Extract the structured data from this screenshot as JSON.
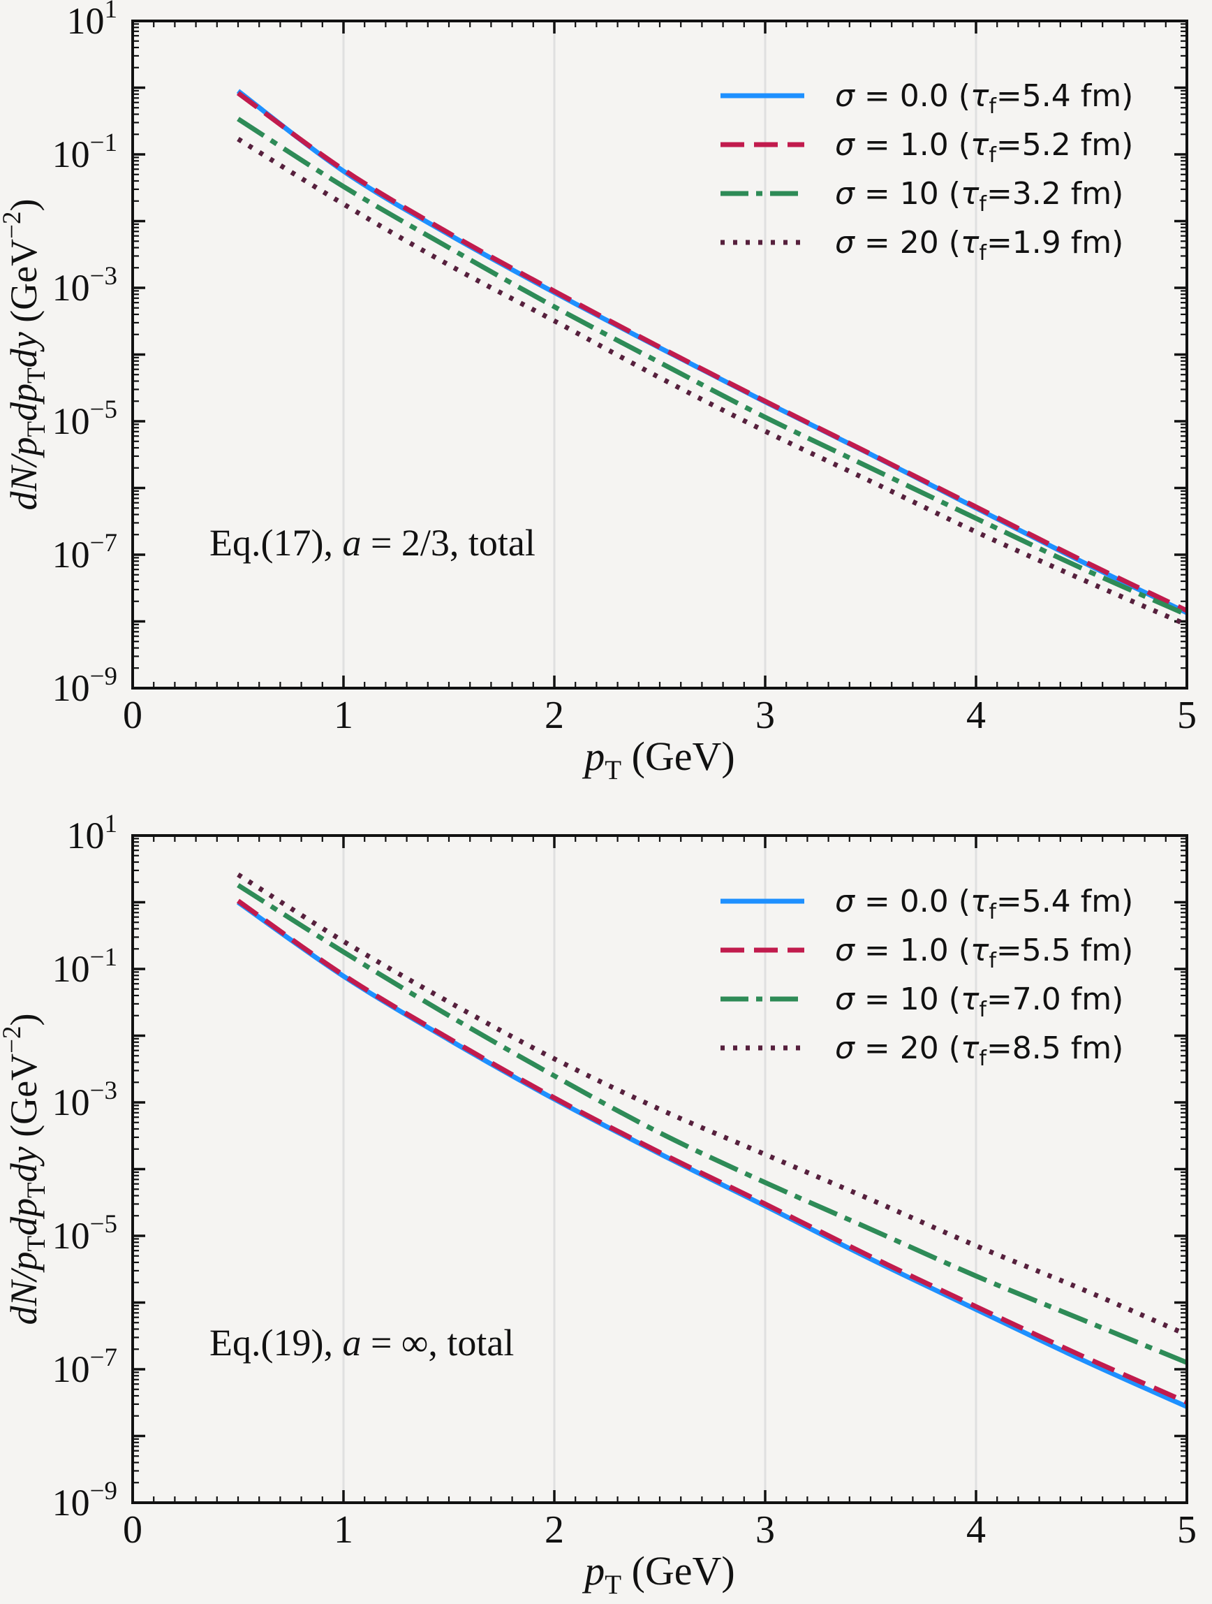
{
  "page": {
    "background": "#f5f4f2",
    "text_color": "#111111",
    "grid_color": "#e0e0e0"
  },
  "chart_data": [
    {
      "type": "line",
      "panel": "top",
      "title": "",
      "annotation": "Eq.(17), a = 2/3, total",
      "annotation_parts": {
        "prefix": "Eq.(17), ",
        "var": "a",
        "suffix": " = 2/3, total"
      },
      "xlabel": "pT (GeV)",
      "xlabel_parts": [
        {
          "t": "p",
          "i": 1
        },
        {
          "t": "T",
          "sub": 1
        },
        {
          "t": " (GeV)"
        }
      ],
      "ylabel": "dN/pTdpTdy (GeV−2)",
      "ylabel_parts": [
        {
          "t": "dN",
          "i": 1
        },
        {
          "t": "/",
          "i": 1
        },
        {
          "t": "p",
          "i": 1
        },
        {
          "t": "T",
          "sub": 1
        },
        {
          "t": "dp",
          "i": 1
        },
        {
          "t": "T",
          "sub": 1
        },
        {
          "t": "dy",
          "i": 1
        },
        {
          "t": " (GeV"
        },
        {
          "t": "−2",
          "sup": 1
        },
        {
          "t": ")"
        }
      ],
      "xlim": [
        0,
        5
      ],
      "x_tick_labels": [
        "0",
        "1",
        "2",
        "3",
        "4",
        "5"
      ],
      "x_minor_step": 0.1,
      "y_log_range": [
        -9,
        1
      ],
      "y_tick_exponents": [
        "1",
        "−1",
        "−3",
        "−5",
        "−7",
        "−9"
      ],
      "gridlines_x": [
        1,
        2,
        3,
        4
      ],
      "grid": "vertical-light",
      "legend_position": "upper-right",
      "legend_entries": [
        {
          "label": "σ = 0.0 (τf=5.4 fm)",
          "sigma": "0.0",
          "tau": "5.4",
          "color": "#1e90ff",
          "style": "solid"
        },
        {
          "label": "σ = 1.0 (τf=5.2 fm)",
          "sigma": "1.0",
          "tau": "5.2",
          "color": "#c11b4d",
          "style": "dashed"
        },
        {
          "label": "σ = 10 (τf=3.2 fm)",
          "sigma": "10",
          "tau": "3.2",
          "color": "#2e8b57",
          "style": "dashdot"
        },
        {
          "label": "σ = 20 (τf=1.9 fm)",
          "sigma": "20",
          "tau": "1.9",
          "color": "#56203d",
          "style": "dotted"
        }
      ],
      "x": [
        0.5,
        1.0,
        1.5,
        2.0,
        2.5,
        3.0,
        3.5,
        4.0,
        4.5,
        5.0
      ],
      "series": [
        {
          "name": "σ = 0.0 (τf=5.4 fm)",
          "color": "#1e90ff",
          "style": "solid",
          "values": [
            0.89,
            0.056,
            0.0063,
            0.00085,
            0.000126,
            1.95e-05,
            3.2e-06,
            5e-07,
            7.9e-08,
            1.35e-08
          ]
        },
        {
          "name": "σ = 1.0 (τf=5.2 fm)",
          "color": "#c11b4d",
          "style": "dashed",
          "values": [
            0.83,
            0.059,
            0.0066,
            0.00089,
            0.000129,
            2e-05,
            3.24e-06,
            5.2e-07,
            8.3e-08,
            1.45e-08
          ]
        },
        {
          "name": "σ = 10 (τf=3.2 fm)",
          "color": "#2e8b57",
          "style": "dashdot",
          "values": [
            0.34,
            0.033,
            0.004,
            0.00052,
            7.6e-05,
            1.15e-05,
            2e-06,
            3.5e-07,
            6.3e-08,
            1.26e-08
          ]
        },
        {
          "name": "σ = 20 (τf=1.9 fm)",
          "color": "#56203d",
          "style": "dotted",
          "values": [
            0.17,
            0.018,
            0.0022,
            0.00032,
            4.5e-05,
            7.1e-06,
            1.26e-06,
            2.2e-07,
            4.3e-08,
            8.9e-09
          ]
        }
      ]
    },
    {
      "type": "line",
      "panel": "bottom",
      "title": "",
      "annotation": "Eq.(19), a = ∞, total",
      "annotation_parts": {
        "prefix": "Eq.(19), ",
        "var": "a",
        "suffix": " = ∞, total"
      },
      "xlabel": "pT (GeV)",
      "xlabel_parts": [
        {
          "t": "p",
          "i": 1
        },
        {
          "t": "T",
          "sub": 1
        },
        {
          "t": " (GeV)"
        }
      ],
      "ylabel": "dN/pTdpTdy (GeV−2)",
      "ylabel_parts": [
        {
          "t": "dN",
          "i": 1
        },
        {
          "t": "/",
          "i": 1
        },
        {
          "t": "p",
          "i": 1
        },
        {
          "t": "T",
          "sub": 1
        },
        {
          "t": "dp",
          "i": 1
        },
        {
          "t": "T",
          "sub": 1
        },
        {
          "t": "dy",
          "i": 1
        },
        {
          "t": " (GeV"
        },
        {
          "t": "−2",
          "sup": 1
        },
        {
          "t": ")"
        }
      ],
      "xlim": [
        0,
        5
      ],
      "x_tick_labels": [
        "0",
        "1",
        "2",
        "3",
        "4",
        "5"
      ],
      "x_minor_step": 0.1,
      "y_log_range": [
        -9,
        1
      ],
      "y_tick_exponents": [
        "1",
        "−1",
        "−3",
        "−5",
        "−7",
        "−9"
      ],
      "gridlines_x": [
        1,
        2,
        3,
        4
      ],
      "grid": "vertical-light",
      "legend_position": "upper-right",
      "legend_entries": [
        {
          "label": "σ = 0.0 (τf=5.4 fm)",
          "sigma": "0.0",
          "tau": "5.4",
          "color": "#1e90ff",
          "style": "solid"
        },
        {
          "label": "σ = 1.0 (τf=5.5 fm)",
          "sigma": "1.0",
          "tau": "5.5",
          "color": "#c11b4d",
          "style": "dashed"
        },
        {
          "label": "σ = 10 (τf=7.0 fm)",
          "sigma": "10",
          "tau": "7.0",
          "color": "#2e8b57",
          "style": "dashdot"
        },
        {
          "label": "σ = 20 (τf=8.5 fm)",
          "sigma": "20",
          "tau": "8.5",
          "color": "#56203d",
          "style": "dotted"
        }
      ],
      "x": [
        0.5,
        1.0,
        1.5,
        2.0,
        2.5,
        3.0,
        3.5,
        4.0,
        4.5,
        5.0
      ],
      "series": [
        {
          "name": "σ = 0.0 (τf=5.4 fm)",
          "color": "#1e90ff",
          "style": "solid",
          "values": [
            1.0,
            0.078,
            0.0087,
            0.00112,
            0.00017,
            2.8e-05,
            4.5e-06,
            7.9e-07,
            1.4e-07,
            2.75e-08
          ]
        },
        {
          "name": "σ = 1.0 (τf=5.5 fm)",
          "color": "#c11b4d",
          "style": "dashed",
          "values": [
            1.05,
            0.081,
            0.0091,
            0.00117,
            0.000178,
            3e-05,
            4.9e-06,
            8.7e-07,
            1.6e-07,
            3.2e-08
          ]
        },
        {
          "name": "σ = 10 (τf=7.0 fm)",
          "color": "#2e8b57",
          "style": "dashdot",
          "values": [
            1.8,
            0.18,
            0.02,
            0.0025,
            0.00035,
            6.3e-05,
            1.26e-05,
            2.5e-06,
            5.6e-07,
            1.26e-07
          ]
        },
        {
          "name": "σ = 20 (τf=8.5 fm)",
          "color": "#56203d",
          "style": "dotted",
          "values": [
            2.6,
            0.26,
            0.032,
            0.0045,
            0.00079,
            0.000166,
            3.5e-05,
            7.1e-06,
            1.6e-06,
            3.3e-07
          ]
        }
      ]
    }
  ]
}
